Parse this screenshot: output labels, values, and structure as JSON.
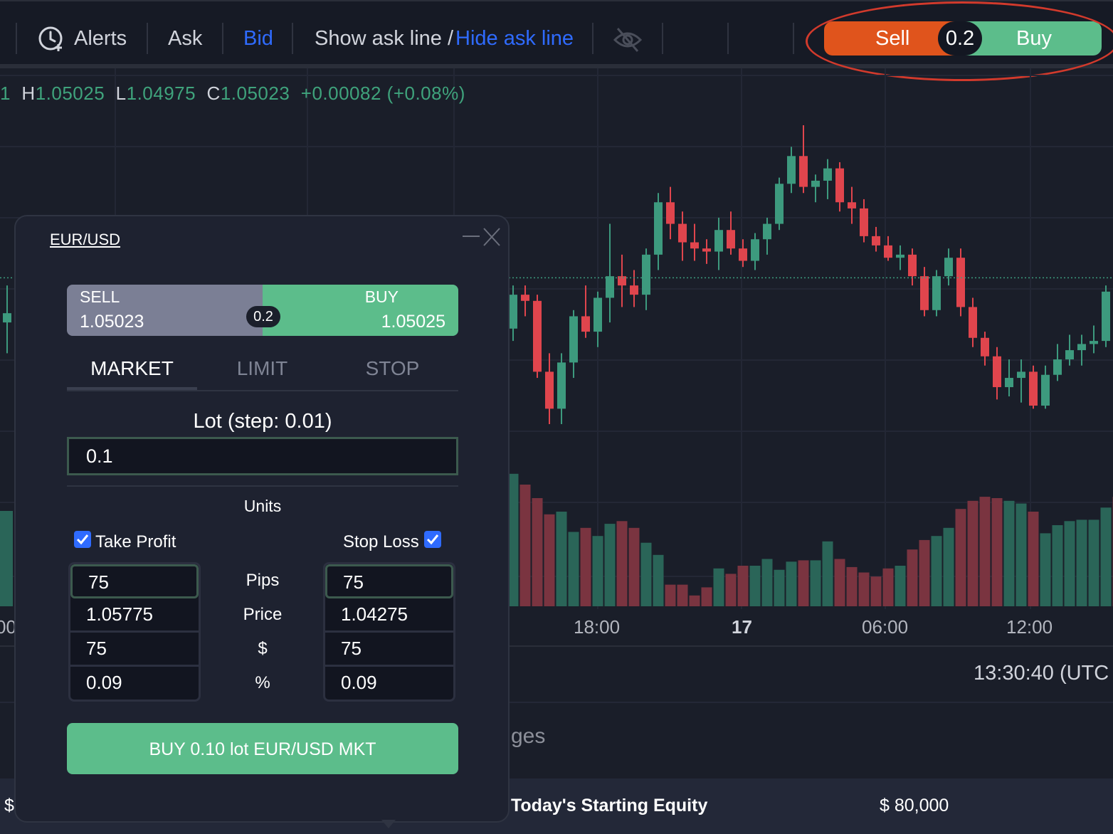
{
  "toolbar": {
    "alerts_label": "Alerts",
    "ask_label": "Ask",
    "bid_label": "Bid",
    "show_ask_line": "Show ask line /",
    "hide_ask_line": "Hide ask line",
    "sell_label": "Sell",
    "buy_label": "Buy",
    "quantity": "0.2"
  },
  "ohlc": {
    "prefix": "1",
    "high_key": "H",
    "high": "1.05025",
    "low_key": "L",
    "low": "1.04975",
    "close_key": "C",
    "close": "1.05023",
    "change": "+0.00082 (+0.08%)"
  },
  "chart_data": {
    "type": "candlestick",
    "symbol": "EUR/USD",
    "time_labels": [
      "00",
      "18:00",
      "17",
      "06:00",
      "12:00"
    ],
    "price_range": [
      1.0435,
      1.0515
    ],
    "last_price": 1.05025,
    "grid": true,
    "candles": [
      {
        "o": 1.0475,
        "h": 1.0493,
        "l": 1.0472,
        "c": 1.0478
      },
      {
        "o": 1.0486,
        "h": 1.05,
        "l": 1.0482,
        "c": 1.0497
      },
      {
        "o": 1.0497,
        "h": 1.05,
        "l": 1.049,
        "c": 1.0495
      },
      {
        "o": 1.0495,
        "h": 1.0497,
        "l": 1.047,
        "c": 1.0472
      },
      {
        "o": 1.0472,
        "h": 1.0478,
        "l": 1.0455,
        "c": 1.046
      },
      {
        "o": 1.046,
        "h": 1.0478,
        "l": 1.0455,
        "c": 1.0475
      },
      {
        "o": 1.0475,
        "h": 1.0492,
        "l": 1.047,
        "c": 1.049
      },
      {
        "o": 1.049,
        "h": 1.05,
        "l": 1.0483,
        "c": 1.0485
      },
      {
        "o": 1.0485,
        "h": 1.0498,
        "l": 1.048,
        "c": 1.0496
      },
      {
        "o": 1.0496,
        "h": 1.052,
        "l": 1.0488,
        "c": 1.0503
      },
      {
        "o": 1.0503,
        "h": 1.051,
        "l": 1.0493,
        "c": 1.05
      },
      {
        "o": 1.05,
        "h": 1.0505,
        "l": 1.0493,
        "c": 1.0497
      },
      {
        "o": 1.0497,
        "h": 1.0512,
        "l": 1.0492,
        "c": 1.051
      },
      {
        "o": 1.051,
        "h": 1.053,
        "l": 1.0505,
        "c": 1.0527
      },
      {
        "o": 1.0527,
        "h": 1.0532,
        "l": 1.0515,
        "c": 1.052
      },
      {
        "o": 1.052,
        "h": 1.0524,
        "l": 1.0508,
        "c": 1.0514
      },
      {
        "o": 1.0514,
        "h": 1.052,
        "l": 1.0508,
        "c": 1.0512
      },
      {
        "o": 1.0512,
        "h": 1.0515,
        "l": 1.0507,
        "c": 1.0511
      },
      {
        "o": 1.0511,
        "h": 1.0522,
        "l": 1.0505,
        "c": 1.0518
      },
      {
        "o": 1.0518,
        "h": 1.0524,
        "l": 1.051,
        "c": 1.0512
      },
      {
        "o": 1.0512,
        "h": 1.0515,
        "l": 1.0506,
        "c": 1.0508
      },
      {
        "o": 1.0508,
        "h": 1.0517,
        "l": 1.0505,
        "c": 1.0515
      },
      {
        "o": 1.0515,
        "h": 1.0522,
        "l": 1.051,
        "c": 1.052
      },
      {
        "o": 1.052,
        "h": 1.0535,
        "l": 1.0518,
        "c": 1.0533
      },
      {
        "o": 1.0533,
        "h": 1.0545,
        "l": 1.053,
        "c": 1.0542
      },
      {
        "o": 1.0542,
        "h": 1.0552,
        "l": 1.053,
        "c": 1.0532
      },
      {
        "o": 1.0532,
        "h": 1.0536,
        "l": 1.0527,
        "c": 1.0534
      },
      {
        "o": 1.0534,
        "h": 1.0541,
        "l": 1.0528,
        "c": 1.0538
      },
      {
        "o": 1.0538,
        "h": 1.054,
        "l": 1.0524,
        "c": 1.0527
      },
      {
        "o": 1.0527,
        "h": 1.0532,
        "l": 1.052,
        "c": 1.0525
      },
      {
        "o": 1.0525,
        "h": 1.0528,
        "l": 1.0514,
        "c": 1.0516
      },
      {
        "o": 1.0516,
        "h": 1.0519,
        "l": 1.0511,
        "c": 1.0513
      },
      {
        "o": 1.0513,
        "h": 1.0516,
        "l": 1.0508,
        "c": 1.0509
      },
      {
        "o": 1.0509,
        "h": 1.0513,
        "l": 1.0505,
        "c": 1.051
      },
      {
        "o": 1.051,
        "h": 1.0512,
        "l": 1.05,
        "c": 1.0503
      },
      {
        "o": 1.0503,
        "h": 1.0506,
        "l": 1.049,
        "c": 1.0492
      },
      {
        "o": 1.0492,
        "h": 1.0505,
        "l": 1.049,
        "c": 1.0503
      },
      {
        "o": 1.0503,
        "h": 1.0512,
        "l": 1.05,
        "c": 1.0509
      },
      {
        "o": 1.0509,
        "h": 1.0512,
        "l": 1.049,
        "c": 1.0493
      },
      {
        "o": 1.0493,
        "h": 1.0496,
        "l": 1.048,
        "c": 1.0483
      },
      {
        "o": 1.0483,
        "h": 1.0485,
        "l": 1.0474,
        "c": 1.0477
      },
      {
        "o": 1.0477,
        "h": 1.048,
        "l": 1.0463,
        "c": 1.0467
      },
      {
        "o": 1.0467,
        "h": 1.0476,
        "l": 1.0464,
        "c": 1.047
      },
      {
        "o": 1.047,
        "h": 1.0476,
        "l": 1.0462,
        "c": 1.0472
      },
      {
        "o": 1.0472,
        "h": 1.0474,
        "l": 1.046,
        "c": 1.0461
      },
      {
        "o": 1.0461,
        "h": 1.0474,
        "l": 1.046,
        "c": 1.0471
      },
      {
        "o": 1.0471,
        "h": 1.0481,
        "l": 1.0469,
        "c": 1.0476
      },
      {
        "o": 1.0476,
        "h": 1.0484,
        "l": 1.0474,
        "c": 1.0479
      },
      {
        "o": 1.0479,
        "h": 1.0484,
        "l": 1.0474,
        "c": 1.0481
      },
      {
        "o": 1.0481,
        "h": 1.0487,
        "l": 1.0478,
        "c": 1.0482
      },
      {
        "o": 1.0482,
        "h": 1.05,
        "l": 1.048,
        "c": 1.0498
      },
      {
        "o": 1.0498,
        "h": 1.0499,
        "l": 1.0484,
        "c": 1.0486
      },
      {
        "o": 1.0486,
        "h": 1.0502,
        "l": 1.0486,
        "c": 1.0502
      }
    ],
    "volumes": [
      0.95,
      0.98,
      0.9,
      0.8,
      0.68,
      0.7,
      0.55,
      0.58,
      0.52,
      0.61,
      0.63,
      0.58,
      0.47,
      0.38,
      0.16,
      0.16,
      0.08,
      0.14,
      0.28,
      0.24,
      0.3,
      0.3,
      0.35,
      0.27,
      0.33,
      0.34,
      0.34,
      0.48,
      0.35,
      0.29,
      0.25,
      0.22,
      0.28,
      0.3,
      0.42,
      0.49,
      0.52,
      0.58,
      0.72,
      0.78,
      0.81,
      0.8,
      0.78,
      0.76,
      0.7,
      0.54,
      0.6,
      0.63,
      0.64,
      0.64,
      0.73,
      0.81,
      0.02
    ],
    "background_candles": [
      {
        "x": 10,
        "o": 1.0488,
        "h": 1.05,
        "l": 1.0478,
        "c": 1.0491
      },
      {
        "x": 262,
        "o": 1.0513,
        "h": 1.0517,
        "l": 1.0508,
        "c": 1.0516
      },
      {
        "x": 280,
        "o": 1.0514,
        "h": 1.0518,
        "l": 1.051,
        "c": 1.0516
      },
      {
        "x": 296,
        "o": 1.0516,
        "h": 1.052,
        "l": 1.0512,
        "c": 1.0513
      },
      {
        "x": 400,
        "o": 1.0513,
        "h": 1.0516,
        "l": 1.051,
        "c": 1.0515
      },
      {
        "x": 416,
        "o": 1.0515,
        "h": 1.0518,
        "l": 1.0511,
        "c": 1.0516
      },
      {
        "x": 432,
        "o": 1.0516,
        "h": 1.0517,
        "l": 1.0512,
        "c": 1.0513
      },
      {
        "x": 450,
        "o": 1.0513,
        "h": 1.0516,
        "l": 1.0511,
        "c": 1.0514
      },
      {
        "x": 466,
        "o": 1.0514,
        "h": 1.0517,
        "l": 1.0512,
        "c": 1.0513
      },
      {
        "x": 484,
        "o": 1.0513,
        "h": 1.0516,
        "l": 1.0512,
        "c": 1.0514
      },
      {
        "x": 517,
        "o": 1.0514,
        "h": 1.0522,
        "l": 1.0512,
        "c": 1.0513
      },
      {
        "x": 534,
        "o": 1.0513,
        "h": 1.0518,
        "l": 1.0512,
        "c": 1.0514
      }
    ]
  },
  "chart": {
    "clock": "13:30:40 (UTC",
    "lower_text": "ges"
  },
  "footer": {
    "dollar": "$",
    "equity_label": "Today's Starting Equity",
    "equity_value": "$ 80,000"
  },
  "order_panel": {
    "symbol": "EUR/USD",
    "sell_label": "SELL",
    "sell_price": "1.05023",
    "buy_label": "BUY",
    "buy_price": "1.05025",
    "quantity": "0.2",
    "tabs": [
      "MARKET",
      "LIMIT",
      "STOP"
    ],
    "active_tab": "MARKET",
    "lot_label": "Lot  (step: 0.01)",
    "lot_value": "0.1",
    "units_label": "Units",
    "take_profit_label": "Take Profit",
    "take_profit_checked": true,
    "stop_loss_label": "Stop Loss",
    "stop_loss_checked": true,
    "row_labels": [
      "Pips",
      "Price",
      "$",
      "%"
    ],
    "take_profit": {
      "pips": "75",
      "price": "1.05775",
      "dollar": "75",
      "percent": "0.09"
    },
    "stop_loss": {
      "pips": "75",
      "price": "1.04275",
      "dollar": "75",
      "percent": "0.09"
    },
    "submit_label": "BUY  0.10 lot EUR/USD MKT"
  },
  "colors": {
    "up": "#3d9a7e",
    "down": "#e0454d",
    "accent_blue": "#2f6bff",
    "sell_orange": "#e0541c",
    "buy_green": "#5cbd8b"
  }
}
